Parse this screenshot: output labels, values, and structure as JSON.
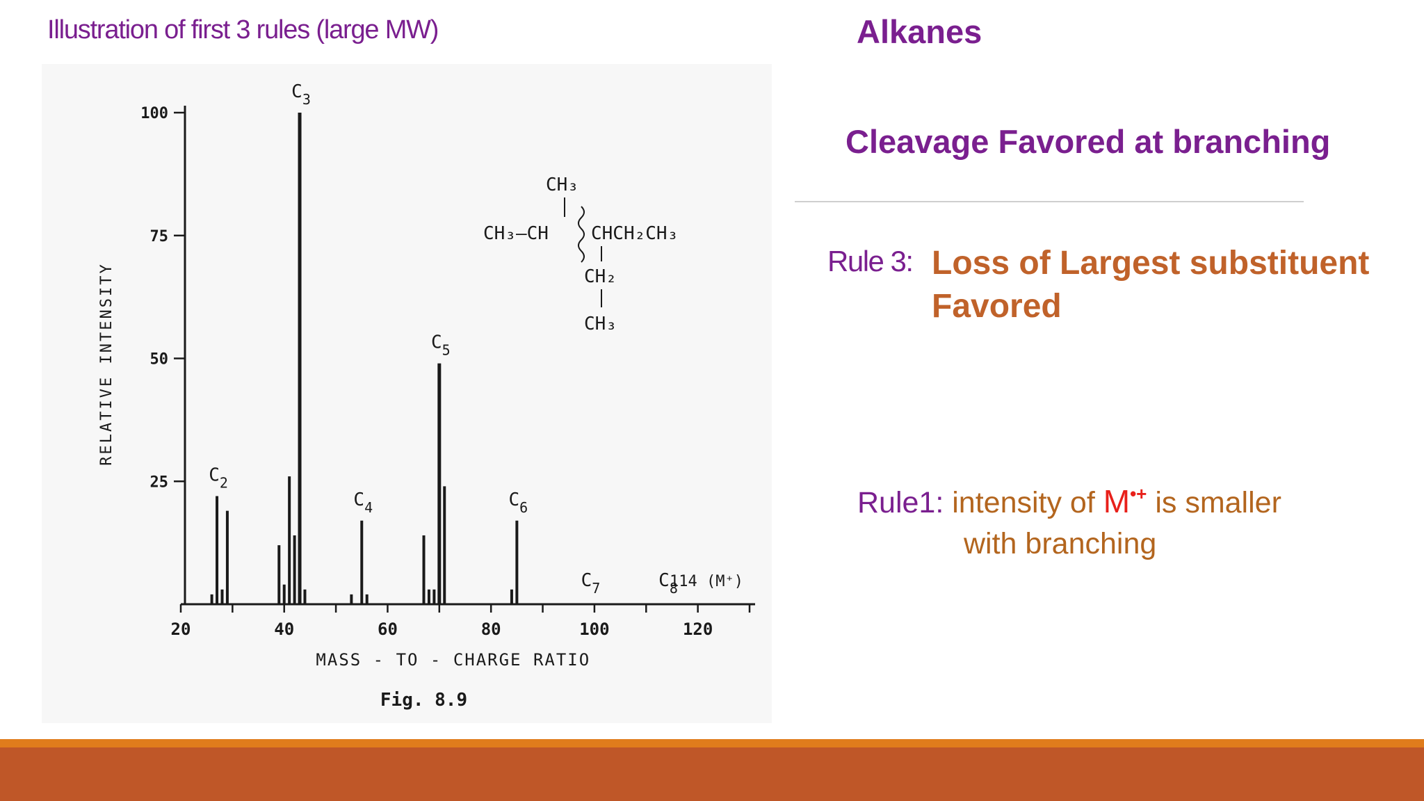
{
  "slide": {
    "top_title": "Illustration of first 3 rules (large MW)",
    "heading": "Alkanes",
    "subheading": "Cleavage Favored at branching",
    "rule3": {
      "label": "Rule 3:",
      "text_line1": "Loss of Largest substituent",
      "text_line2": "Favored"
    },
    "rule1": {
      "label": "Rule1:",
      "text_before": " intensity of ",
      "ion_symbol": "M",
      "ion_charge": "•+",
      "text_after": " is smaller",
      "text_line2": "with branching"
    },
    "colors": {
      "purple": "#7a1f8f",
      "orange_text": "#c0622a",
      "brown_text": "#b3651e",
      "red": "#e8201a",
      "footer_orange": "#e07c1c",
      "footer_rust": "#bf5728"
    }
  },
  "chart_data": {
    "type": "bar",
    "title": "",
    "caption": "Fig. 8.9",
    "xlabel": "MASS - TO - CHARGE RATIO",
    "ylabel": "RELATIVE INTENSITY",
    "xlim": [
      20,
      130
    ],
    "ylim": [
      0,
      100
    ],
    "xticks": [
      20,
      40,
      60,
      80,
      100,
      120
    ],
    "yticks": [
      25,
      50,
      75,
      100
    ],
    "peaks": [
      {
        "x": 26,
        "y": 2
      },
      {
        "x": 27,
        "y": 22
      },
      {
        "x": 28,
        "y": 3
      },
      {
        "x": 29,
        "y": 19
      },
      {
        "x": 39,
        "y": 12
      },
      {
        "x": 40,
        "y": 4
      },
      {
        "x": 41,
        "y": 26
      },
      {
        "x": 42,
        "y": 14
      },
      {
        "x": 43,
        "y": 100
      },
      {
        "x": 44,
        "y": 3
      },
      {
        "x": 53,
        "y": 2
      },
      {
        "x": 55,
        "y": 17
      },
      {
        "x": 56,
        "y": 2
      },
      {
        "x": 67,
        "y": 14
      },
      {
        "x": 68,
        "y": 3
      },
      {
        "x": 69,
        "y": 3
      },
      {
        "x": 70,
        "y": 49
      },
      {
        "x": 71,
        "y": 24
      },
      {
        "x": 84,
        "y": 3
      },
      {
        "x": 85,
        "y": 17
      }
    ],
    "peak_labels": [
      {
        "base": "C",
        "sub": "2",
        "x": 27,
        "y": 22
      },
      {
        "base": "C",
        "sub": "3",
        "x": 43,
        "y": 100
      },
      {
        "base": "C",
        "sub": "4",
        "x": 55,
        "y": 17
      },
      {
        "base": "C",
        "sub": "5",
        "x": 70,
        "y": 49
      },
      {
        "base": "C",
        "sub": "6",
        "x": 85,
        "y": 17
      },
      {
        "base": "C",
        "sub": "7",
        "x": 99,
        "y": 0
      },
      {
        "base": "C",
        "sub": "8",
        "x": 114,
        "y": 0
      }
    ],
    "molecular_ion_label": "114  (M⁺)",
    "structure": {
      "top": "CH₃",
      "main_left": "CH₃—CH",
      "main_right": "CHCH₂CH₃",
      "branch1": "CH₂",
      "branch2": "CH₃"
    }
  }
}
